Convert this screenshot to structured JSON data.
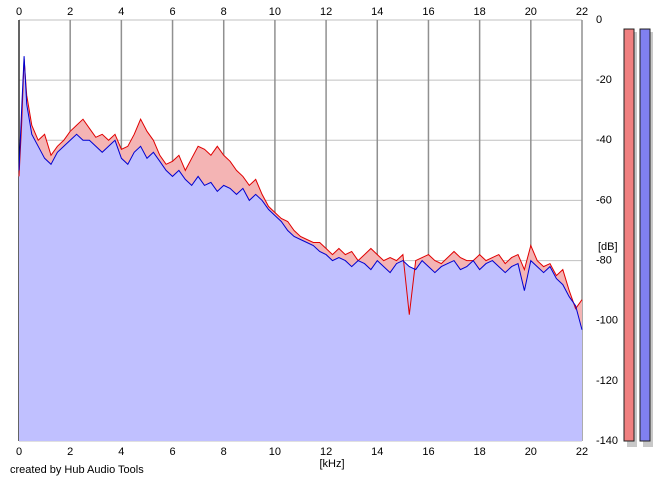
{
  "chart_data": {
    "type": "spectrum",
    "xlabel": "[kHz]",
    "ylabel": "[dB]",
    "credit": "created by Hub Audio Tools",
    "xlim": [
      0,
      22
    ],
    "xticks": [
      0,
      2,
      4,
      6,
      8,
      10,
      12,
      14,
      16,
      18,
      20,
      22
    ],
    "ylim": [
      -140,
      0
    ],
    "yticks": [
      0,
      -20,
      -40,
      -60,
      -80,
      -100,
      -120,
      -140
    ],
    "grid": true,
    "x": [
      0,
      0.1,
      0.2,
      0.3,
      0.5,
      0.75,
      1,
      1.25,
      1.5,
      1.75,
      2,
      2.25,
      2.5,
      2.75,
      3,
      3.25,
      3.5,
      3.75,
      4,
      4.25,
      4.5,
      4.75,
      5,
      5.25,
      5.5,
      5.75,
      6,
      6.25,
      6.5,
      6.75,
      7,
      7.25,
      7.5,
      7.75,
      8,
      8.25,
      8.5,
      8.75,
      9,
      9.25,
      9.5,
      9.75,
      10,
      10.25,
      10.5,
      10.75,
      11,
      11.25,
      11.5,
      11.75,
      12,
      12.25,
      12.5,
      12.75,
      13,
      13.25,
      13.5,
      13.75,
      14,
      14.25,
      14.5,
      14.75,
      15,
      15.25,
      15.5,
      15.75,
      16,
      16.25,
      16.5,
      16.75,
      17,
      17.25,
      17.5,
      17.75,
      18,
      18.25,
      18.5,
      18.75,
      19,
      19.25,
      19.5,
      19.75,
      20,
      20.25,
      20.5,
      20.75,
      21,
      21.25,
      21.5,
      21.75,
      22
    ],
    "series": [
      {
        "color": "#e00000",
        "fill": "#f4b4b4",
        "values": [
          -52,
          -35,
          -13,
          -25,
          -35,
          -40,
          -38,
          -45,
          -42,
          -40,
          -37,
          -35,
          -33,
          -36,
          -39,
          -38,
          -40,
          -38,
          -43,
          -42,
          -38,
          -33,
          -37,
          -40,
          -45,
          -48,
          -47,
          -45,
          -50,
          -46,
          -42,
          -43,
          -45,
          -42,
          -45,
          -47,
          -50,
          -52,
          -55,
          -53,
          -58,
          -62,
          -64,
          -66,
          -67,
          -70,
          -72,
          -73,
          -74,
          -74,
          -76,
          -78,
          -76,
          -78,
          -77,
          -80,
          -78,
          -76,
          -78,
          -80,
          -79,
          -80,
          -78,
          -98,
          -80,
          -79,
          -78,
          -80,
          -81,
          -79,
          -77,
          -79,
          -80,
          -80,
          -78,
          -80,
          -79,
          -78,
          -81,
          -79,
          -78,
          -83,
          -75,
          -80,
          -82,
          -81,
          -85,
          -83,
          -90,
          -96,
          -93
        ]
      },
      {
        "color": "#0000d0",
        "fill": "#c0c0ff",
        "values": [
          -50,
          -30,
          -12,
          -28,
          -38,
          -42,
          -46,
          -48,
          -44,
          -42,
          -40,
          -38,
          -40,
          -40,
          -42,
          -44,
          -42,
          -40,
          -46,
          -48,
          -44,
          -42,
          -46,
          -44,
          -47,
          -50,
          -52,
          -50,
          -53,
          -55,
          -52,
          -55,
          -54,
          -57,
          -55,
          -56,
          -58,
          -56,
          -60,
          -58,
          -60,
          -63,
          -65,
          -67,
          -70,
          -72,
          -73,
          -74,
          -75,
          -77,
          -78,
          -80,
          -79,
          -80,
          -82,
          -80,
          -81,
          -83,
          -80,
          -82,
          -84,
          -81,
          -80,
          -82,
          -83,
          -80,
          -82,
          -84,
          -82,
          -81,
          -80,
          -83,
          -82,
          -80,
          -83,
          -81,
          -80,
          -82,
          -84,
          -82,
          -81,
          -90,
          -80,
          -82,
          -84,
          -82,
          -86,
          -88,
          -92,
          -95,
          -103
        ]
      }
    ],
    "meters": [
      {
        "color": "#f08080",
        "value": -3
      },
      {
        "color": "#8080f0",
        "value": -3
      }
    ]
  }
}
